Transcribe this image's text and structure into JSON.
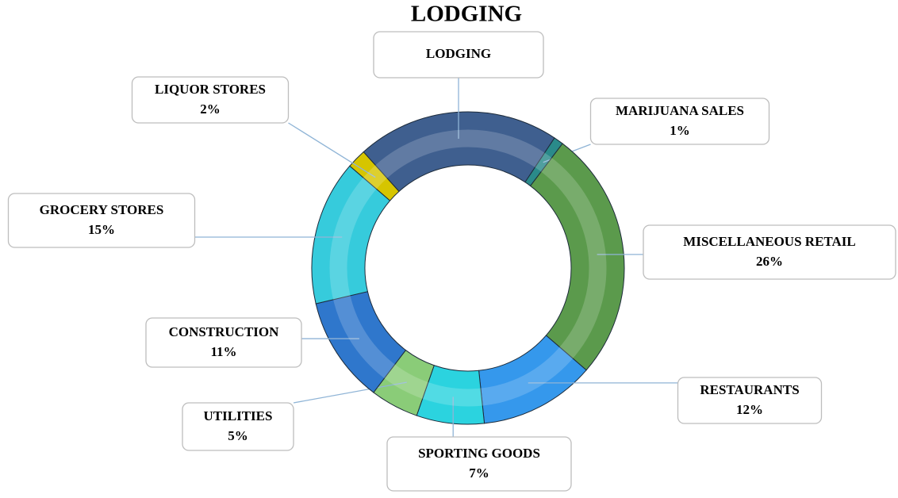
{
  "chart_data": {
    "type": "donut",
    "title": "LODGING",
    "categories": [
      "LODGING",
      "MARIJUANA SALES",
      "MISCELLANEOUS RETAIL",
      "RESTAURANTS",
      "SPORTING GOODS",
      "UTILITIES",
      "CONSTRUCTION",
      "GROCERY STORES",
      "LIQUOR STORES"
    ],
    "values": [
      21,
      1,
      26,
      12,
      7,
      5,
      11,
      15,
      2
    ],
    "value_labels": [
      null,
      "1%",
      "26%",
      "12%",
      "7%",
      "5%",
      "11%",
      "15%",
      "2%"
    ],
    "colors": [
      "#3f5f8f",
      "#2a8a8a",
      "#5b9a4c",
      "#3598ec",
      "#2bd3df",
      "#8acc78",
      "#2f77cc",
      "#36cbdc",
      "#d6c500"
    ]
  }
}
